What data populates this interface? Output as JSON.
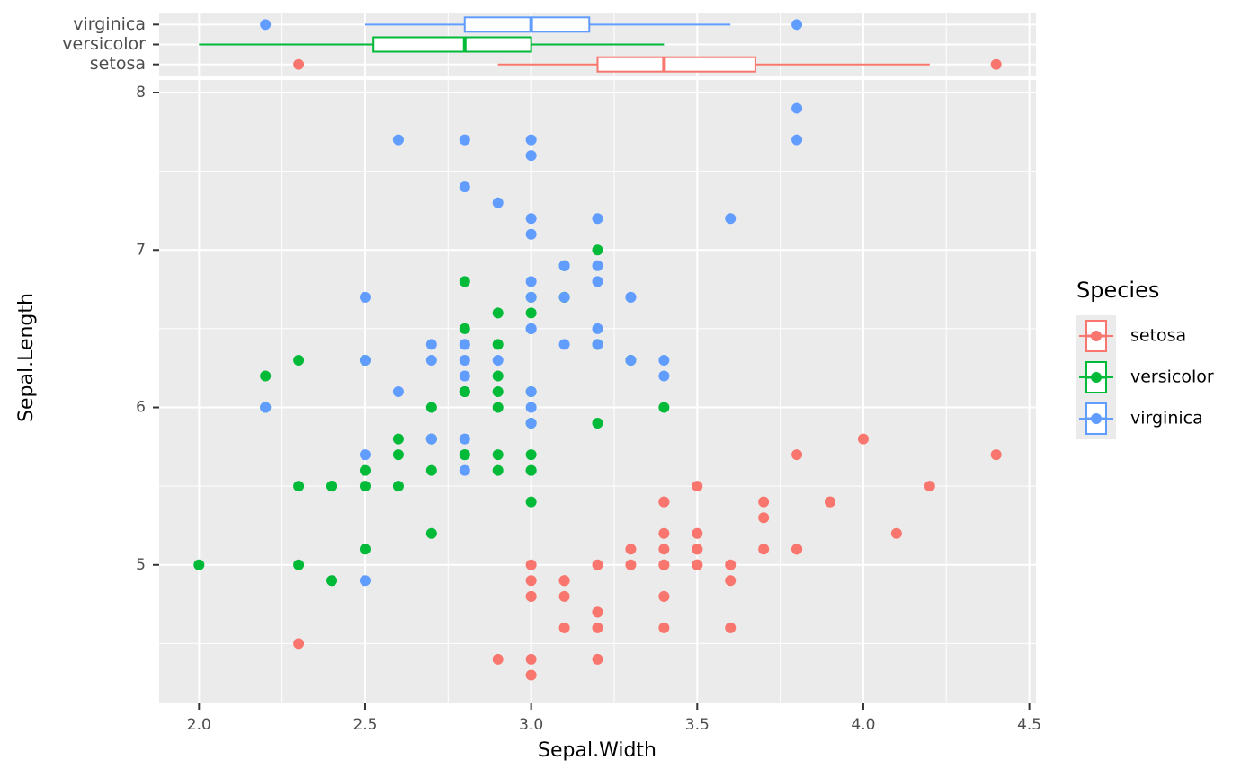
{
  "chart_data": [
    {
      "type": "boxplot",
      "boxes": [
        {
          "name": "setosa",
          "color": "#F8766D",
          "whisker_low": 2.9,
          "q1": 3.2,
          "median": 3.4,
          "q3": 3.675,
          "whisker_high": 4.2,
          "outliers": [
            2.3,
            4.4
          ]
        },
        {
          "name": "versicolor",
          "color": "#00BA38",
          "whisker_low": 2.0,
          "q1": 2.525,
          "median": 2.8,
          "q3": 3.0,
          "whisker_high": 3.4
        },
        {
          "name": "virginica",
          "color": "#619CFF",
          "whisker_low": 2.5,
          "q1": 2.8,
          "median": 3.0,
          "q3": 3.175,
          "whisker_high": 3.6,
          "outliers": [
            2.2,
            3.8
          ]
        }
      ],
      "xlim": [
        1.88,
        4.52
      ],
      "xticks": [
        2,
        2.5,
        3,
        3.5,
        4,
        4.5
      ],
      "xminor": [
        2.25,
        2.75,
        3.25,
        3.75,
        4.25
      ],
      "grid": true
    },
    {
      "type": "scatter",
      "xlabel": "Sepal.Width",
      "ylabel": "Sepal.Length",
      "legend_title": "Species",
      "legend": "right",
      "xlim": [
        1.88,
        4.52
      ],
      "ylim": [
        4.12,
        8.08
      ],
      "xticks": [
        {
          "value": 2,
          "label": "2.0"
        },
        2.5,
        {
          "value": 3,
          "label": "3.0"
        },
        3.5,
        {
          "value": 4,
          "label": "4.0"
        },
        4.5
      ],
      "yticks": [
        5,
        6,
        7,
        8
      ],
      "xminor": [
        2.25,
        2.75,
        3.25,
        3.75,
        4.25
      ],
      "yminor": [
        4.5,
        5.5,
        6.5,
        7.5
      ],
      "grid": true,
      "series": [
        {
          "name": "setosa",
          "color": "#F8766D",
          "x": [
            3.5,
            3.0,
            3.2,
            3.1,
            3.6,
            3.9,
            3.4,
            3.4,
            2.9,
            3.1,
            3.7,
            3.4,
            3.0,
            3.0,
            4.0,
            4.4,
            3.9,
            3.5,
            3.8,
            3.8,
            3.4,
            3.7,
            3.6,
            3.3,
            3.4,
            3.0,
            3.4,
            3.5,
            3.4,
            3.2,
            3.1,
            3.4,
            4.1,
            4.2,
            3.1,
            3.2,
            3.5,
            3.6,
            3.0,
            3.4,
            3.5,
            2.3,
            3.2,
            3.5,
            3.8,
            3.0,
            3.8,
            3.2,
            3.7,
            3.3
          ],
          "values": [
            5.1,
            4.9,
            4.7,
            4.6,
            5.0,
            5.4,
            4.6,
            5.0,
            4.4,
            4.9,
            5.4,
            4.8,
            4.8,
            4.3,
            5.8,
            5.7,
            5.4,
            5.1,
            5.7,
            5.1,
            5.4,
            5.1,
            4.6,
            5.1,
            4.8,
            5.0,
            5.0,
            5.2,
            5.2,
            4.7,
            4.8,
            5.4,
            5.2,
            5.5,
            4.9,
            5.0,
            5.5,
            4.9,
            4.4,
            5.1,
            5.0,
            4.5,
            4.4,
            5.0,
            5.1,
            4.8,
            5.1,
            4.6,
            5.3,
            5.0
          ]
        },
        {
          "name": "versicolor",
          "color": "#00BA38",
          "x": [
            3.2,
            3.2,
            3.1,
            2.3,
            2.8,
            2.8,
            3.3,
            2.4,
            2.9,
            2.7,
            2.0,
            3.0,
            2.2,
            2.9,
            2.9,
            3.1,
            3.0,
            2.7,
            2.2,
            2.5,
            3.2,
            2.8,
            2.5,
            2.8,
            2.9,
            3.0,
            2.8,
            3.0,
            2.9,
            2.6,
            2.4,
            2.4,
            2.7,
            2.7,
            3.0,
            3.4,
            3.1,
            2.3,
            3.0,
            2.5,
            2.6,
            3.0,
            2.6,
            2.3,
            2.7,
            3.0,
            2.9,
            2.9,
            2.5,
            2.8
          ],
          "values": [
            7.0,
            6.4,
            6.9,
            5.5,
            6.5,
            5.7,
            6.3,
            4.9,
            6.6,
            5.2,
            5.0,
            5.9,
            6.0,
            6.1,
            5.6,
            6.7,
            5.6,
            5.8,
            6.2,
            5.6,
            5.9,
            6.1,
            6.3,
            6.1,
            6.4,
            6.6,
            6.8,
            6.7,
            6.0,
            5.7,
            5.5,
            5.5,
            5.8,
            6.0,
            5.4,
            6.0,
            6.7,
            6.3,
            5.6,
            5.5,
            5.5,
            6.1,
            5.8,
            5.0,
            5.6,
            5.7,
            5.7,
            6.2,
            5.1,
            5.7
          ]
        },
        {
          "name": "virginica",
          "color": "#619CFF",
          "x": [
            3.3,
            2.7,
            3.0,
            2.9,
            3.0,
            3.0,
            2.5,
            2.9,
            2.5,
            3.6,
            3.2,
            2.7,
            3.0,
            2.5,
            2.8,
            3.2,
            3.0,
            3.8,
            2.6,
            2.2,
            3.2,
            2.8,
            2.8,
            2.7,
            3.3,
            3.2,
            2.8,
            3.0,
            2.8,
            3.0,
            2.8,
            3.8,
            2.8,
            2.8,
            2.6,
            3.0,
            3.4,
            3.1,
            3.0,
            3.1,
            3.1,
            3.1,
            2.7,
            3.2,
            3.3,
            3.0,
            2.5,
            3.0,
            3.4,
            3.0
          ],
          "values": [
            6.3,
            5.8,
            7.1,
            6.3,
            6.5,
            7.6,
            4.9,
            7.3,
            6.7,
            7.2,
            6.5,
            6.4,
            6.8,
            5.7,
            5.8,
            6.4,
            6.5,
            7.7,
            7.7,
            6.0,
            6.9,
            5.6,
            7.7,
            6.3,
            6.7,
            7.2,
            6.2,
            6.1,
            6.4,
            7.2,
            7.4,
            7.9,
            6.4,
            6.3,
            6.1,
            7.7,
            6.3,
            6.4,
            6.0,
            6.9,
            6.7,
            6.9,
            5.8,
            6.8,
            6.7,
            6.7,
            6.3,
            6.5,
            6.2,
            5.9
          ]
        }
      ]
    }
  ]
}
